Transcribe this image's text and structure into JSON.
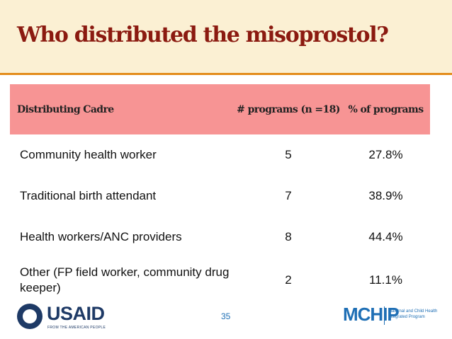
{
  "slide": {
    "title": "Who distributed the misoprostol?",
    "page_number": "35"
  },
  "colors": {
    "title": "#8b1a10",
    "header_band": "#fbf0d3",
    "accent_rule": "#e38c1a",
    "table_header": "#f79494",
    "page_number": "#1f6fb5"
  },
  "table": {
    "headers": [
      "Distributing Cadre",
      "# programs (n =18)",
      "% of programs"
    ],
    "rows": [
      {
        "cadre": "Community health worker",
        "programs": "5",
        "percent": "27.8%"
      },
      {
        "cadre": "Traditional birth attendant",
        "programs": "7",
        "percent": "38.9%"
      },
      {
        "cadre": "Health workers/ANC providers",
        "programs": "8",
        "percent": "44.4%"
      },
      {
        "cadre": "Other (FP field worker, community drug keeper)",
        "programs": "2",
        "percent": "11.1%"
      }
    ]
  },
  "logos": {
    "usaid": {
      "name": "USAID",
      "tagline": "FROM THE AMERICAN PEOPLE"
    },
    "mchip": {
      "name": "MCHIP",
      "tagline": "Maternal and Child Health Integrated Program"
    }
  }
}
